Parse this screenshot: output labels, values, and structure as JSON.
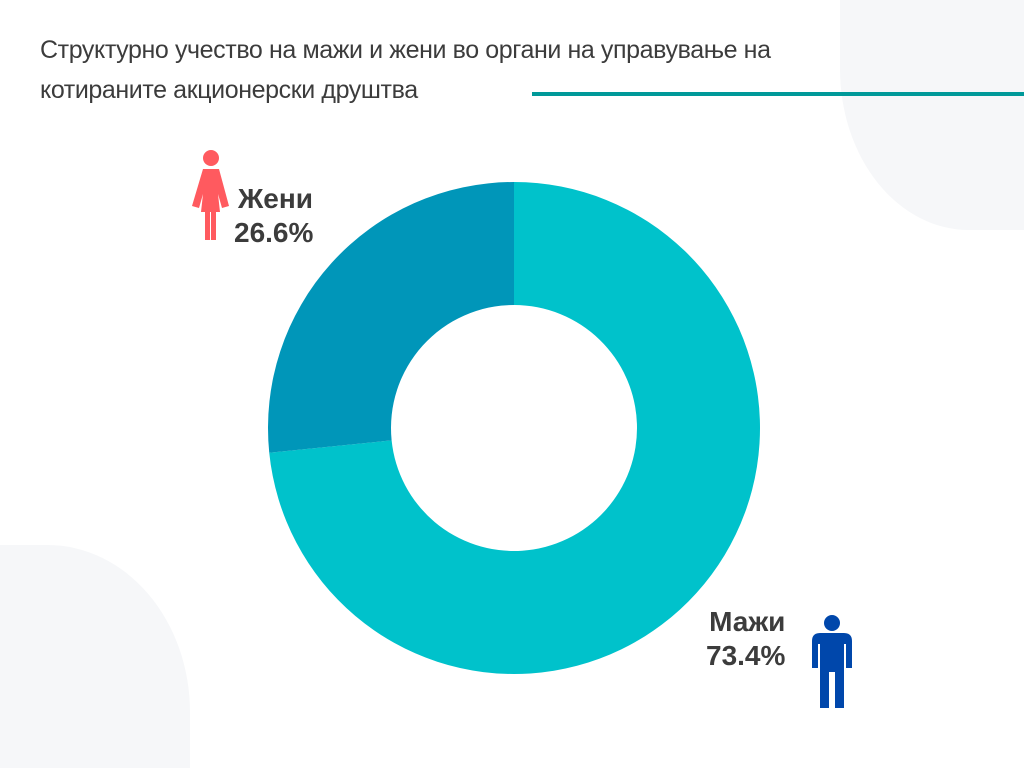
{
  "title_line1": "Структурно учество на мажи и жени во органи на управување на",
  "title_line2": "котираните акционерски друштва",
  "chart_data": {
    "type": "pie",
    "donut": true,
    "title": "Структурно учество на мажи и жени во органи на управување на котираните акционерски друштва",
    "categories": [
      "Мажи",
      "Жени"
    ],
    "values": [
      73.4,
      26.6
    ],
    "labels": [
      "73.4%",
      "26.6%"
    ],
    "colors": [
      "#00C2CB",
      "#0096B9"
    ]
  },
  "icons": {
    "women": "female-figure-icon",
    "men": "male-figure-icon",
    "women_color": "#FF5A5F",
    "men_color": "#0047AB"
  },
  "accent": "#009999"
}
